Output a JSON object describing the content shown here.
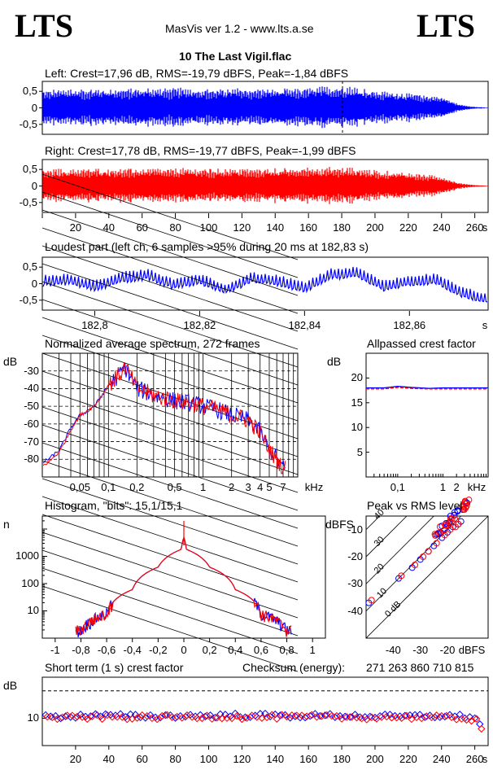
{
  "header": {
    "logo_left": "LTS",
    "logo_right": "LTS",
    "app_title": "MasVis ver 1.2 - www.lts.a.se",
    "file_title": "10 The Last Vigil.flac"
  },
  "colors": {
    "left_channel": "#0000ff",
    "right_channel": "#ff0000",
    "axis": "#000000"
  },
  "panels": {
    "left_wave": {
      "title": "Left: Crest=17,96 dB, RMS=-19,79 dBFS, Peak=-1,84 dBFS",
      "yticks": [
        "0,5",
        "0",
        "-0,5"
      ]
    },
    "right_wave": {
      "title": "Right: Crest=17,78 dB, RMS=-19,77 dBFS, Peak=-1,99 dBFS",
      "yticks": [
        "0,5",
        "0",
        "-0,5"
      ],
      "xticks": [
        "20",
        "40",
        "60",
        "80",
        "100",
        "120",
        "140",
        "160",
        "180",
        "200",
        "220",
        "240",
        "260"
      ],
      "xunit": "s"
    },
    "loudest": {
      "title": "Loudest part (left  ch, 6 samples >95% during 20 ms at 182,83 s)",
      "yticks": [
        "0,5",
        "0",
        "-0,5"
      ],
      "xticks": [
        "182,8",
        "182,82",
        "182,84",
        "182,86"
      ],
      "xunit": "s"
    },
    "spectrum": {
      "title": "Normalized average spectrum, 272 frames",
      "ylabel": "dB",
      "yticks": [
        "-30",
        "-40",
        "-50",
        "-60",
        "-70",
        "-80"
      ],
      "xticks": [
        "0,05",
        "0,1",
        "0,2",
        "0,5",
        "1",
        "2",
        "3",
        "4",
        "5",
        "7"
      ],
      "xunit": "kHz"
    },
    "allpass": {
      "title": "Allpassed crest factor",
      "ylabel": "dB",
      "yticks": [
        "20",
        "15",
        "10",
        "5"
      ],
      "xticks": [
        "0,1",
        "1",
        "2"
      ],
      "xunit": "kHz"
    },
    "histogram": {
      "title": "Histogram, \"bits\": 15,1/15,1",
      "ylabel": "n",
      "yticks": [
        "1000",
        "100",
        "10"
      ],
      "xticks": [
        "-1",
        "-0,8",
        "-0,6",
        "-0,4",
        "-0,2",
        "0",
        "0,2",
        "0,4",
        "0,6",
        "0,8",
        "1"
      ]
    },
    "peakrms": {
      "title": "Peak vs RMS level",
      "ylabel": "dBFS",
      "yticks": [
        "-10",
        "-20",
        "-30",
        "-40"
      ],
      "xticks": [
        "-40",
        "-30",
        "-20"
      ],
      "xunit": "dBFS",
      "diag_labels": [
        "40",
        "30",
        "20",
        "10",
        "0 dB"
      ]
    },
    "shortcrest": {
      "title": "Short term (1 s) crest factor",
      "checksum_label": "Checksum (energy):",
      "checksum_value": "271 263 860 710 815",
      "ylabel": "dB",
      "yticks": [
        "10"
      ],
      "xticks": [
        "20",
        "40",
        "60",
        "80",
        "100",
        "120",
        "140",
        "160",
        "180",
        "200",
        "220",
        "240",
        "260"
      ],
      "xunit": "s"
    }
  },
  "chart_data": [
    {
      "type": "area",
      "panel": "left_wave",
      "title": "Left: Crest=17,96 dB, RMS=-19,79 dBFS, Peak=-1,84 dBFS",
      "ylim": [
        -0.8,
        0.8
      ],
      "xlim": [
        0,
        268
      ],
      "series": [
        {
          "name": "Left",
          "x": [
            0,
            20,
            40,
            60,
            80,
            100,
            120,
            140,
            160,
            180,
            200,
            220,
            240,
            250,
            260,
            268
          ],
          "envelope": [
            0.55,
            0.6,
            0.6,
            0.62,
            0.62,
            0.6,
            0.6,
            0.6,
            0.62,
            0.7,
            0.55,
            0.45,
            0.35,
            0.12,
            0.03,
            0.01
          ]
        }
      ]
    },
    {
      "type": "area",
      "panel": "right_wave",
      "title": "Right: Crest=17,78 dB, RMS=-19,77 dBFS, Peak=-1,99 dBFS",
      "ylim": [
        -0.8,
        0.8
      ],
      "xlim": [
        0,
        268
      ],
      "series": [
        {
          "name": "Right",
          "x": [
            0,
            20,
            40,
            60,
            80,
            100,
            120,
            140,
            160,
            180,
            200,
            220,
            240,
            250,
            260,
            268
          ],
          "envelope": [
            0.5,
            0.55,
            0.55,
            0.55,
            0.55,
            0.55,
            0.55,
            0.55,
            0.58,
            0.6,
            0.5,
            0.42,
            0.3,
            0.1,
            0.03,
            0.01
          ]
        }
      ]
    },
    {
      "type": "line",
      "panel": "loudest",
      "xlim": [
        182.79,
        182.875
      ],
      "ylim": [
        -0.8,
        0.8
      ],
      "series": [
        {
          "name": "Left",
          "x": [
            182.79,
            182.795,
            182.8,
            182.805,
            182.81,
            182.815,
            182.82,
            182.825,
            182.83,
            182.835,
            182.84,
            182.845,
            182.85,
            182.855,
            182.86,
            182.865,
            182.87,
            182.875
          ],
          "y": [
            0.05,
            0.1,
            -0.1,
            0.15,
            0.25,
            -0.05,
            0.1,
            -0.2,
            0.15,
            0.05,
            -0.15,
            0.25,
            0.3,
            -0.1,
            0.05,
            0.1,
            -0.3,
            -0.5
          ]
        }
      ]
    },
    {
      "type": "line",
      "panel": "spectrum",
      "xscale": "log",
      "xlim": [
        0.02,
        10
      ],
      "ylim": [
        -90,
        -20
      ],
      "series": [
        {
          "name": "Left",
          "x": [
            0.02,
            0.03,
            0.04,
            0.05,
            0.07,
            0.1,
            0.15,
            0.2,
            0.3,
            0.5,
            0.7,
            1,
            2,
            3,
            4,
            5,
            7
          ],
          "y": [
            -82,
            -75,
            -62,
            -55,
            -50,
            -38,
            -28,
            -40,
            -44,
            -47,
            -48,
            -50,
            -55,
            -58,
            -65,
            -75,
            -85
          ]
        },
        {
          "name": "Right",
          "x": [
            0.02,
            0.03,
            0.04,
            0.05,
            0.07,
            0.1,
            0.15,
            0.2,
            0.3,
            0.5,
            0.7,
            1,
            2,
            3,
            4,
            5,
            7
          ],
          "y": [
            -84,
            -76,
            -63,
            -55,
            -50,
            -38,
            -28,
            -40,
            -44,
            -47,
            -48,
            -50,
            -55,
            -58,
            -65,
            -75,
            -85
          ]
        }
      ]
    },
    {
      "type": "line",
      "panel": "allpass",
      "xscale": "log",
      "xlim": [
        0.02,
        10
      ],
      "ylim": [
        0,
        25
      ],
      "series": [
        {
          "name": "Left",
          "x": [
            0.02,
            0.05,
            0.1,
            0.2,
            0.5,
            1,
            2,
            5,
            10
          ],
          "y": [
            18,
            18,
            18.3,
            18.1,
            17.9,
            18,
            18,
            18,
            18
          ]
        },
        {
          "name": "Right",
          "x": [
            0.02,
            0.05,
            0.1,
            0.2,
            0.5,
            1,
            2,
            5,
            10
          ],
          "y": [
            17.8,
            17.8,
            18.1,
            17.9,
            17.8,
            17.8,
            17.8,
            17.8,
            17.8
          ]
        }
      ]
    },
    {
      "type": "line",
      "panel": "histogram",
      "yscale": "log",
      "xlim": [
        -1.1,
        1.1
      ],
      "ylim": [
        1,
        30000
      ],
      "series": [
        {
          "name": "Both",
          "x": [
            -0.8,
            -0.6,
            -0.4,
            -0.2,
            -0.02,
            0,
            0.02,
            0.2,
            0.4,
            0.6,
            0.8
          ],
          "y": [
            2,
            8,
            60,
            400,
            1800,
            5000,
            1800,
            400,
            60,
            8,
            2
          ]
        }
      ]
    },
    {
      "type": "scatter",
      "panel": "peakrms",
      "xlim": [
        -50,
        -5
      ],
      "ylim": [
        -50,
        -5
      ],
      "series": [
        {
          "name": "Left",
          "x": [
            -49,
            -38,
            -33,
            -30,
            -27,
            -25,
            -22,
            -20,
            -18,
            -16,
            -15
          ],
          "y": [
            -37,
            -28,
            -24,
            -21,
            -18,
            -16,
            -13,
            -11,
            -9,
            -8,
            -7
          ]
        },
        {
          "name": "Right",
          "x": [
            -48,
            -37,
            -32,
            -29,
            -27,
            -24,
            -21,
            -19,
            -17,
            -16
          ],
          "y": [
            -36,
            -27,
            -23,
            -20,
            -18,
            -15,
            -12,
            -10,
            -9,
            -8
          ]
        }
      ]
    },
    {
      "type": "scatter",
      "panel": "shortcrest",
      "xlim": [
        0,
        268
      ],
      "ylim": [
        0,
        25
      ],
      "series": [
        {
          "name": "Left",
          "x": [
            5,
            30,
            60,
            90,
            120,
            150,
            180,
            210,
            240,
            260
          ],
          "y": [
            10.5,
            11,
            10.7,
            10.9,
            11.1,
            10.8,
            11,
            10.6,
            10.9,
            10.5
          ]
        },
        {
          "name": "Right",
          "x": [
            10,
            35,
            65,
            95,
            125,
            155,
            185,
            215,
            245,
            265
          ],
          "y": [
            10.2,
            10.4,
            10.3,
            10.6,
            10.4,
            10.5,
            10.3,
            10.4,
            10.2,
            9.5
          ]
        }
      ]
    }
  ]
}
